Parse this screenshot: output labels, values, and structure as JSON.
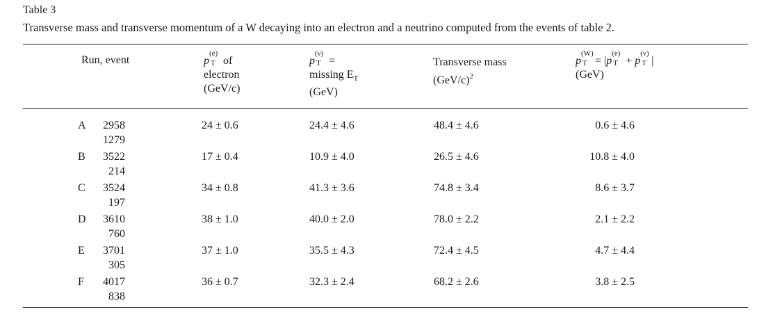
{
  "caption": {
    "label": "Table 3",
    "text": "Transverse mass and transverse momentum of a W decaying into an electron and a neutrino computed from the events of table 2."
  },
  "headers": {
    "run": "Run, event",
    "pe": {
      "symbol": "p",
      "sub": "T",
      "sup": "(e)",
      "tail": " of",
      "line2": "electron",
      "line3": "(GeV/c)"
    },
    "pnu": {
      "symbol": "p",
      "sub": "T",
      "sup": "(ν)",
      "tail": " =",
      "line2": "missing E",
      "line2_sub": "T",
      "line3": "(GeV)"
    },
    "mass": {
      "line1": "Transverse mass",
      "line2": "(GeV/c)",
      "line2_sup": "2"
    },
    "pw": {
      "formula": "p_T^(W) = |p_T^(e) + p_T^(ν)|",
      "line2": "(GeV)"
    }
  },
  "rows": [
    {
      "run": "A",
      "num": "2958",
      "event": "1279",
      "pe": "24 ± 0.6",
      "pnu": "24.4 ± 4.6",
      "mass": "48.4 ± 4.6",
      "pw": "0.6 ± 4.6"
    },
    {
      "run": "B",
      "num": "3522",
      "event": "214",
      "pe": "17 ± 0.4",
      "pnu": "10.9 ± 4.0",
      "mass": "26.5 ± 4.6",
      "pw": "10.8 ± 4.0"
    },
    {
      "run": "C",
      "num": "3524",
      "event": "197",
      "pe": "34 ± 0.8",
      "pnu": "41.3 ± 3.6",
      "mass": "74.8 ± 3.4",
      "pw": "8.6 ± 3.7"
    },
    {
      "run": "D",
      "num": "3610",
      "event": "760",
      "pe": "38 ± 1.0",
      "pnu": "40.0 ± 2.0",
      "mass": "78.0 ± 2.2",
      "pw": "2.1 ± 2.2"
    },
    {
      "run": "E",
      "num": "3701",
      "event": "305",
      "pe": "37 ± 1.0",
      "pnu": "35.5 ± 4.3",
      "mass": "72.4 ± 4.5",
      "pw": "4.7 ± 4.4"
    },
    {
      "run": "F",
      "num": "4017",
      "event": "838",
      "pe": "36 ± 0.7",
      "pnu": "32.3 ± 2.4",
      "mass": "68.2 ± 2.6",
      "pw": "3.8 ± 2.5"
    }
  ]
}
